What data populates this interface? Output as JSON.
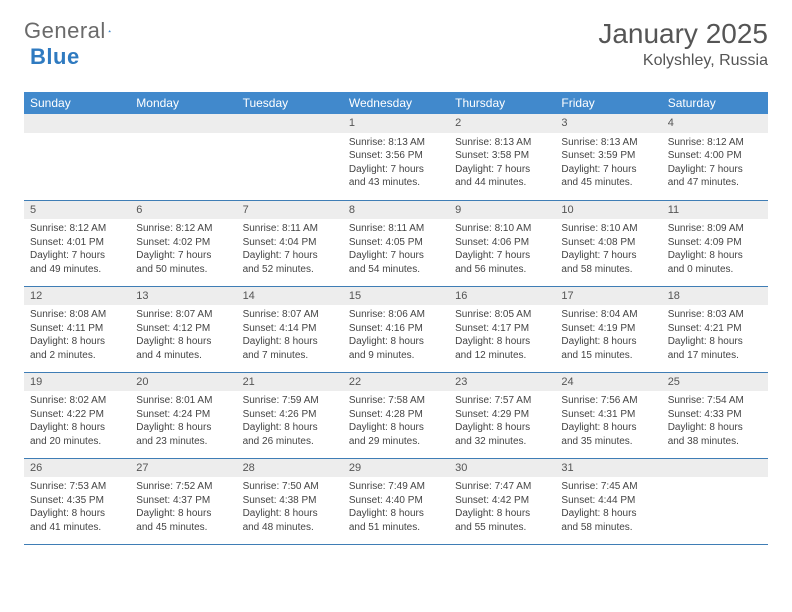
{
  "logo": {
    "text1": "General",
    "text2": "Blue"
  },
  "title": "January 2025",
  "location": "Kolyshley, Russia",
  "colors": {
    "header_bg": "#4189cc",
    "header_text": "#ffffff",
    "daynum_bg": "#ededed",
    "border": "#3f7db5",
    "body_text": "#444444",
    "logo_gray": "#6a6a6a",
    "logo_blue": "#2f7ac0"
  },
  "day_headers": [
    "Sunday",
    "Monday",
    "Tuesday",
    "Wednesday",
    "Thursday",
    "Friday",
    "Saturday"
  ],
  "weeks": [
    [
      null,
      null,
      null,
      {
        "n": "1",
        "sr": "Sunrise: 8:13 AM",
        "ss": "Sunset: 3:56 PM",
        "d1": "Daylight: 7 hours",
        "d2": "and 43 minutes."
      },
      {
        "n": "2",
        "sr": "Sunrise: 8:13 AM",
        "ss": "Sunset: 3:58 PM",
        "d1": "Daylight: 7 hours",
        "d2": "and 44 minutes."
      },
      {
        "n": "3",
        "sr": "Sunrise: 8:13 AM",
        "ss": "Sunset: 3:59 PM",
        "d1": "Daylight: 7 hours",
        "d2": "and 45 minutes."
      },
      {
        "n": "4",
        "sr": "Sunrise: 8:12 AM",
        "ss": "Sunset: 4:00 PM",
        "d1": "Daylight: 7 hours",
        "d2": "and 47 minutes."
      }
    ],
    [
      {
        "n": "5",
        "sr": "Sunrise: 8:12 AM",
        "ss": "Sunset: 4:01 PM",
        "d1": "Daylight: 7 hours",
        "d2": "and 49 minutes."
      },
      {
        "n": "6",
        "sr": "Sunrise: 8:12 AM",
        "ss": "Sunset: 4:02 PM",
        "d1": "Daylight: 7 hours",
        "d2": "and 50 minutes."
      },
      {
        "n": "7",
        "sr": "Sunrise: 8:11 AM",
        "ss": "Sunset: 4:04 PM",
        "d1": "Daylight: 7 hours",
        "d2": "and 52 minutes."
      },
      {
        "n": "8",
        "sr": "Sunrise: 8:11 AM",
        "ss": "Sunset: 4:05 PM",
        "d1": "Daylight: 7 hours",
        "d2": "and 54 minutes."
      },
      {
        "n": "9",
        "sr": "Sunrise: 8:10 AM",
        "ss": "Sunset: 4:06 PM",
        "d1": "Daylight: 7 hours",
        "d2": "and 56 minutes."
      },
      {
        "n": "10",
        "sr": "Sunrise: 8:10 AM",
        "ss": "Sunset: 4:08 PM",
        "d1": "Daylight: 7 hours",
        "d2": "and 58 minutes."
      },
      {
        "n": "11",
        "sr": "Sunrise: 8:09 AM",
        "ss": "Sunset: 4:09 PM",
        "d1": "Daylight: 8 hours",
        "d2": "and 0 minutes."
      }
    ],
    [
      {
        "n": "12",
        "sr": "Sunrise: 8:08 AM",
        "ss": "Sunset: 4:11 PM",
        "d1": "Daylight: 8 hours",
        "d2": "and 2 minutes."
      },
      {
        "n": "13",
        "sr": "Sunrise: 8:07 AM",
        "ss": "Sunset: 4:12 PM",
        "d1": "Daylight: 8 hours",
        "d2": "and 4 minutes."
      },
      {
        "n": "14",
        "sr": "Sunrise: 8:07 AM",
        "ss": "Sunset: 4:14 PM",
        "d1": "Daylight: 8 hours",
        "d2": "and 7 minutes."
      },
      {
        "n": "15",
        "sr": "Sunrise: 8:06 AM",
        "ss": "Sunset: 4:16 PM",
        "d1": "Daylight: 8 hours",
        "d2": "and 9 minutes."
      },
      {
        "n": "16",
        "sr": "Sunrise: 8:05 AM",
        "ss": "Sunset: 4:17 PM",
        "d1": "Daylight: 8 hours",
        "d2": "and 12 minutes."
      },
      {
        "n": "17",
        "sr": "Sunrise: 8:04 AM",
        "ss": "Sunset: 4:19 PM",
        "d1": "Daylight: 8 hours",
        "d2": "and 15 minutes."
      },
      {
        "n": "18",
        "sr": "Sunrise: 8:03 AM",
        "ss": "Sunset: 4:21 PM",
        "d1": "Daylight: 8 hours",
        "d2": "and 17 minutes."
      }
    ],
    [
      {
        "n": "19",
        "sr": "Sunrise: 8:02 AM",
        "ss": "Sunset: 4:22 PM",
        "d1": "Daylight: 8 hours",
        "d2": "and 20 minutes."
      },
      {
        "n": "20",
        "sr": "Sunrise: 8:01 AM",
        "ss": "Sunset: 4:24 PM",
        "d1": "Daylight: 8 hours",
        "d2": "and 23 minutes."
      },
      {
        "n": "21",
        "sr": "Sunrise: 7:59 AM",
        "ss": "Sunset: 4:26 PM",
        "d1": "Daylight: 8 hours",
        "d2": "and 26 minutes."
      },
      {
        "n": "22",
        "sr": "Sunrise: 7:58 AM",
        "ss": "Sunset: 4:28 PM",
        "d1": "Daylight: 8 hours",
        "d2": "and 29 minutes."
      },
      {
        "n": "23",
        "sr": "Sunrise: 7:57 AM",
        "ss": "Sunset: 4:29 PM",
        "d1": "Daylight: 8 hours",
        "d2": "and 32 minutes."
      },
      {
        "n": "24",
        "sr": "Sunrise: 7:56 AM",
        "ss": "Sunset: 4:31 PM",
        "d1": "Daylight: 8 hours",
        "d2": "and 35 minutes."
      },
      {
        "n": "25",
        "sr": "Sunrise: 7:54 AM",
        "ss": "Sunset: 4:33 PM",
        "d1": "Daylight: 8 hours",
        "d2": "and 38 minutes."
      }
    ],
    [
      {
        "n": "26",
        "sr": "Sunrise: 7:53 AM",
        "ss": "Sunset: 4:35 PM",
        "d1": "Daylight: 8 hours",
        "d2": "and 41 minutes."
      },
      {
        "n": "27",
        "sr": "Sunrise: 7:52 AM",
        "ss": "Sunset: 4:37 PM",
        "d1": "Daylight: 8 hours",
        "d2": "and 45 minutes."
      },
      {
        "n": "28",
        "sr": "Sunrise: 7:50 AM",
        "ss": "Sunset: 4:38 PM",
        "d1": "Daylight: 8 hours",
        "d2": "and 48 minutes."
      },
      {
        "n": "29",
        "sr": "Sunrise: 7:49 AM",
        "ss": "Sunset: 4:40 PM",
        "d1": "Daylight: 8 hours",
        "d2": "and 51 minutes."
      },
      {
        "n": "30",
        "sr": "Sunrise: 7:47 AM",
        "ss": "Sunset: 4:42 PM",
        "d1": "Daylight: 8 hours",
        "d2": "and 55 minutes."
      },
      {
        "n": "31",
        "sr": "Sunrise: 7:45 AM",
        "ss": "Sunset: 4:44 PM",
        "d1": "Daylight: 8 hours",
        "d2": "and 58 minutes."
      },
      null
    ]
  ]
}
